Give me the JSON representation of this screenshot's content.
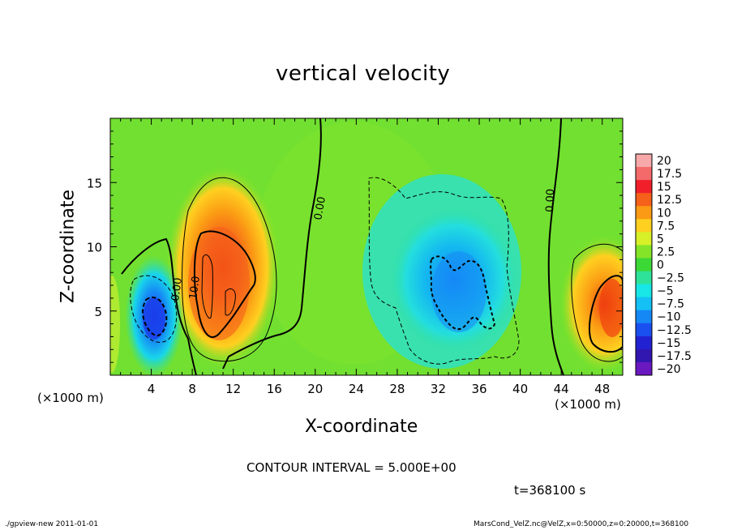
{
  "chart_data": {
    "type": "heatmap",
    "title": "vertical velocity",
    "xlabel": "X-coordinate",
    "ylabel": "Z-coordinate",
    "x_unit": "(×1000 m)",
    "z_unit": "(×1000 m)",
    "xlim": [
      0,
      50
    ],
    "ylim": [
      0,
      20
    ],
    "x_ticks": [
      4,
      8,
      12,
      16,
      20,
      24,
      28,
      32,
      36,
      40,
      44,
      48
    ],
    "y_ticks": [
      5,
      10,
      15
    ],
    "colorbar_levels": [
      "20",
      "17.5",
      "15",
      "12.5",
      "10",
      "7.5",
      "5",
      "2.5",
      "0",
      "−2.5",
      "−5",
      "−7.5",
      "−10",
      "−12.5",
      "−15",
      "−17.5",
      "−20"
    ],
    "colorbar_colors": [
      "#f7a8a8",
      "#f46a6a",
      "#f0202a",
      "#f5601a",
      "#fb9a14",
      "#ffd020",
      "#d8f028",
      "#84e428",
      "#3cd836",
      "#2ee29a",
      "#18e6e6",
      "#14c0f4",
      "#1688f6",
      "#1a50f0",
      "#2222d2",
      "#3216b0",
      "#6a18c0"
    ],
    "contour_labels": [
      "0.00",
      "0.00",
      "0.00",
      "10.0"
    ],
    "contour_interval": "CONTOUR INTERVAL = 5.000E+00",
    "time": "t=368100 s",
    "features": [
      {
        "sign": "positive",
        "x": 11,
        "z": 7.5,
        "peak": 12.5
      },
      {
        "sign": "negative",
        "x": 4.5,
        "z": 4.5,
        "peak": -12.5
      },
      {
        "sign": "negative",
        "x": 34,
        "z": 6.5,
        "peak": -10
      },
      {
        "sign": "positive",
        "x": 48.5,
        "z": 5.5,
        "peak": 12.5
      }
    ]
  },
  "footer": {
    "left": "./gpview-new   2011-01-01",
    "right": "MarsCond_VelZ.nc@VelZ,x=0:50000,z=0:20000,t=368100"
  }
}
